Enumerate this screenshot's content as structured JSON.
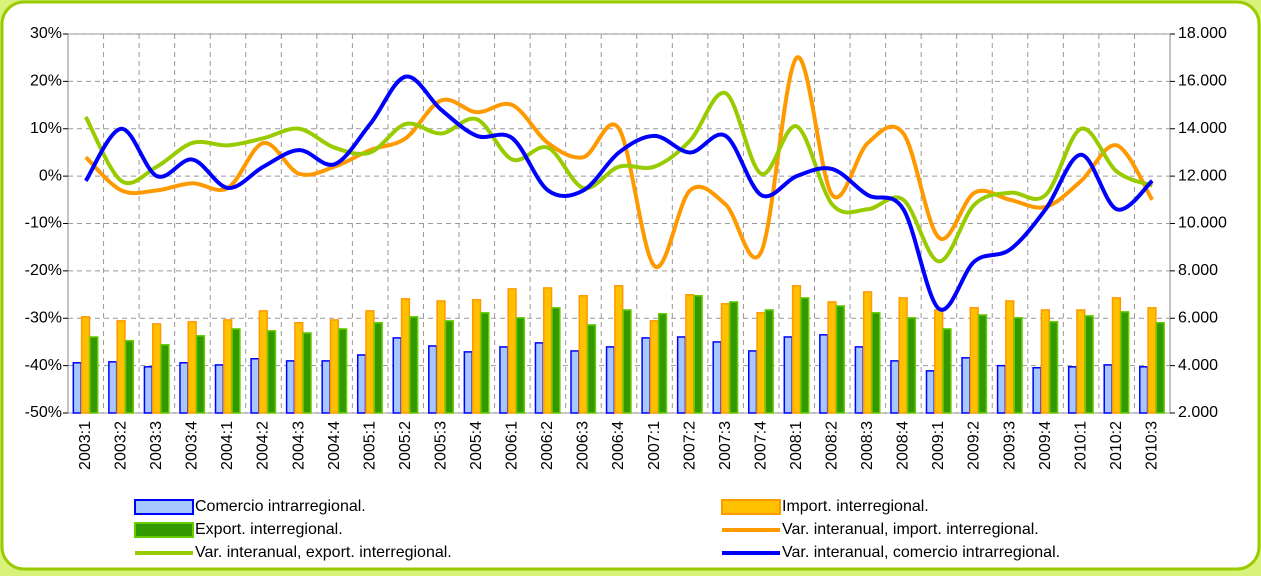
{
  "chart_data": {
    "type": "bar",
    "categories": [
      "2003:1",
      "2003:2",
      "2003:3",
      "2003:4",
      "2004:1",
      "2004:2",
      "2004:3",
      "2004:4",
      "2005:1",
      "2005:2",
      "2005:3",
      "2005:4",
      "2006:1",
      "2006:2",
      "2006:3",
      "2006:4",
      "2007:1",
      "2007:2",
      "2007:3",
      "2007:4",
      "2008:1",
      "2008:2",
      "2008:3",
      "2008:4",
      "2009:1",
      "2009:2",
      "2009:3",
      "2009:4",
      "2010:1",
      "2010:2",
      "2010:3"
    ],
    "ylim": [
      -50,
      30
    ],
    "yticks": [
      {
        "value": -50,
        "label": "-50%"
      },
      {
        "value": -40,
        "label": "-40%"
      },
      {
        "value": -30,
        "label": "-30%"
      },
      {
        "value": -20,
        "label": "-20%"
      },
      {
        "value": -10,
        "label": "-10%"
      },
      {
        "value": 0,
        "label": "0%"
      },
      {
        "value": 10,
        "label": "10%"
      },
      {
        "value": 20,
        "label": "20%"
      },
      {
        "value": 30,
        "label": "30%"
      }
    ],
    "y2lim": [
      2000,
      18000
    ],
    "y2ticks": [
      {
        "value": 2000,
        "label": "2.000"
      },
      {
        "value": 4000,
        "label": "4.000"
      },
      {
        "value": 6000,
        "label": "6.000"
      },
      {
        "value": 8000,
        "label": "8.000"
      },
      {
        "value": 10000,
        "label": "10.000"
      },
      {
        "value": 12000,
        "label": "12.000"
      },
      {
        "value": 14000,
        "label": "14.000"
      },
      {
        "value": 16000,
        "label": "16.000"
      },
      {
        "value": 18000,
        "label": "18.000"
      }
    ],
    "grid": true,
    "series": [
      {
        "name": "Comercio intrarregional.",
        "type": "bar",
        "axis": "y2",
        "color": "#a6c8ff",
        "values": [
          4120,
          4160,
          3950,
          4120,
          4030,
          4290,
          4200,
          4200,
          4450,
          5170,
          4830,
          4580,
          4790,
          4960,
          4620,
          4790,
          5170,
          5210,
          5000,
          4620,
          5210,
          5300,
          4790,
          4200,
          3780,
          4330,
          4000,
          3910,
          3950,
          4030,
          3950
        ]
      },
      {
        "name": "Import. interregional.",
        "type": "bar",
        "axis": "y2",
        "color": "#ffc000",
        "values": [
          6060,
          5890,
          5760,
          5850,
          5930,
          6310,
          5810,
          5930,
          6310,
          6820,
          6730,
          6780,
          7240,
          7280,
          6950,
          7370,
          5890,
          6990,
          6610,
          6230,
          7370,
          6690,
          7110,
          6860,
          6350,
          6440,
          6730,
          6350,
          6350,
          6860,
          6440
        ]
      },
      {
        "name": "Export. interregional.",
        "type": "bar",
        "axis": "y2",
        "color": "#339900",
        "values": [
          5210,
          5050,
          4880,
          5260,
          5550,
          5470,
          5380,
          5550,
          5810,
          6060,
          5890,
          6230,
          6020,
          6440,
          5720,
          6350,
          6190,
          6950,
          6690,
          6350,
          6860,
          6520,
          6230,
          6020,
          5550,
          6140,
          6020,
          5850,
          6100,
          6270,
          5810
        ]
      },
      {
        "name": "Var. interanual, import. interregional.",
        "type": "line",
        "color": "#ff9900",
        "values": [
          4,
          -3,
          -3,
          -1.5,
          -2.5,
          7,
          0.5,
          2,
          5.5,
          8,
          16,
          13.5,
          15,
          7,
          4,
          10,
          -19,
          -3,
          -6,
          -16,
          25,
          -4,
          7,
          9,
          -13,
          -3.5,
          -5,
          -6.5,
          -1,
          6.5,
          -5
        ]
      },
      {
        "name": "Var. interanual, export. interregional.",
        "type": "line",
        "color": "#99cc00",
        "values": [
          12.5,
          -1,
          2,
          7,
          6.5,
          8,
          10,
          6,
          5,
          11,
          9,
          12,
          3.5,
          6,
          -2.5,
          2,
          2,
          7.5,
          17.5,
          0.5,
          10.5,
          -6,
          -7,
          -5,
          -18,
          -6,
          -3.5,
          -4,
          10,
          1,
          -2
        ]
      },
      {
        "name": "Var. interanual, comercio intrarregional.",
        "type": "line",
        "color": "#0000ff",
        "values": [
          -1,
          10,
          0,
          3.5,
          -2.5,
          2,
          5.5,
          2.5,
          11,
          21,
          14,
          8.5,
          8,
          -3,
          -3,
          5,
          8.5,
          5,
          8.5,
          -4,
          0,
          1.5,
          -4,
          -7,
          -28,
          -18,
          -15.5,
          -7,
          4.5,
          -7,
          -1
        ]
      }
    ]
  }
}
